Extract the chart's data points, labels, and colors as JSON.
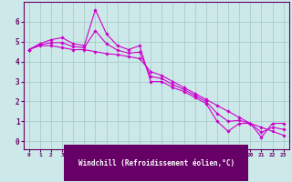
{
  "bg_color": "#cce8e8",
  "xlabel_bg_color": "#660066",
  "grid_color": "#aacccc",
  "line_color": "#cc00cc",
  "marker_color": "#cc00cc",
  "xlabel": "Windchill (Refroidissement éolien,°C)",
  "xlabel_color": "#ffffff",
  "tick_color": "#660066",
  "spine_color": "#660066",
  "ylim": [
    -0.4,
    7.0
  ],
  "xlim": [
    -0.5,
    23.5
  ],
  "yticks": [
    0,
    1,
    2,
    3,
    4,
    5,
    6
  ],
  "xticks": [
    0,
    1,
    2,
    3,
    4,
    5,
    6,
    7,
    8,
    9,
    10,
    11,
    12,
    13,
    14,
    15,
    16,
    17,
    18,
    19,
    20,
    21,
    22,
    23
  ],
  "series1_x": [
    0,
    1,
    2,
    3,
    4,
    5,
    6,
    7,
    8,
    9,
    10,
    11,
    12,
    13,
    14,
    15,
    16,
    17,
    18,
    19,
    20,
    21,
    22,
    23
  ],
  "series1_y": [
    4.6,
    4.9,
    5.1,
    5.2,
    4.9,
    4.8,
    6.6,
    5.4,
    4.8,
    4.6,
    4.8,
    3.0,
    3.0,
    2.7,
    2.5,
    2.2,
    1.9,
    1.0,
    0.5,
    0.9,
    0.9,
    0.2,
    0.9,
    0.9
  ],
  "series2_x": [
    0,
    1,
    2,
    3,
    4,
    5,
    6,
    7,
    8,
    9,
    10,
    11,
    12,
    13,
    14,
    15,
    16,
    17,
    18,
    19,
    20,
    21,
    22,
    23
  ],
  "series2_y": [
    4.6,
    4.8,
    4.8,
    4.7,
    4.6,
    4.6,
    4.5,
    4.4,
    4.35,
    4.25,
    4.15,
    3.5,
    3.3,
    3.0,
    2.7,
    2.4,
    2.1,
    1.8,
    1.5,
    1.2,
    0.9,
    0.7,
    0.5,
    0.3
  ],
  "series3_x": [
    0,
    1,
    2,
    3,
    4,
    5,
    6,
    7,
    8,
    9,
    10,
    11,
    12,
    13,
    14,
    15,
    16,
    17,
    18,
    19,
    20,
    21,
    22,
    23
  ],
  "series3_y": [
    4.6,
    4.85,
    4.95,
    4.95,
    4.75,
    4.7,
    5.55,
    4.9,
    4.575,
    4.425,
    4.475,
    3.25,
    3.15,
    2.85,
    2.6,
    2.3,
    2.0,
    1.4,
    1.0,
    1.05,
    0.9,
    0.45,
    0.7,
    0.6
  ]
}
